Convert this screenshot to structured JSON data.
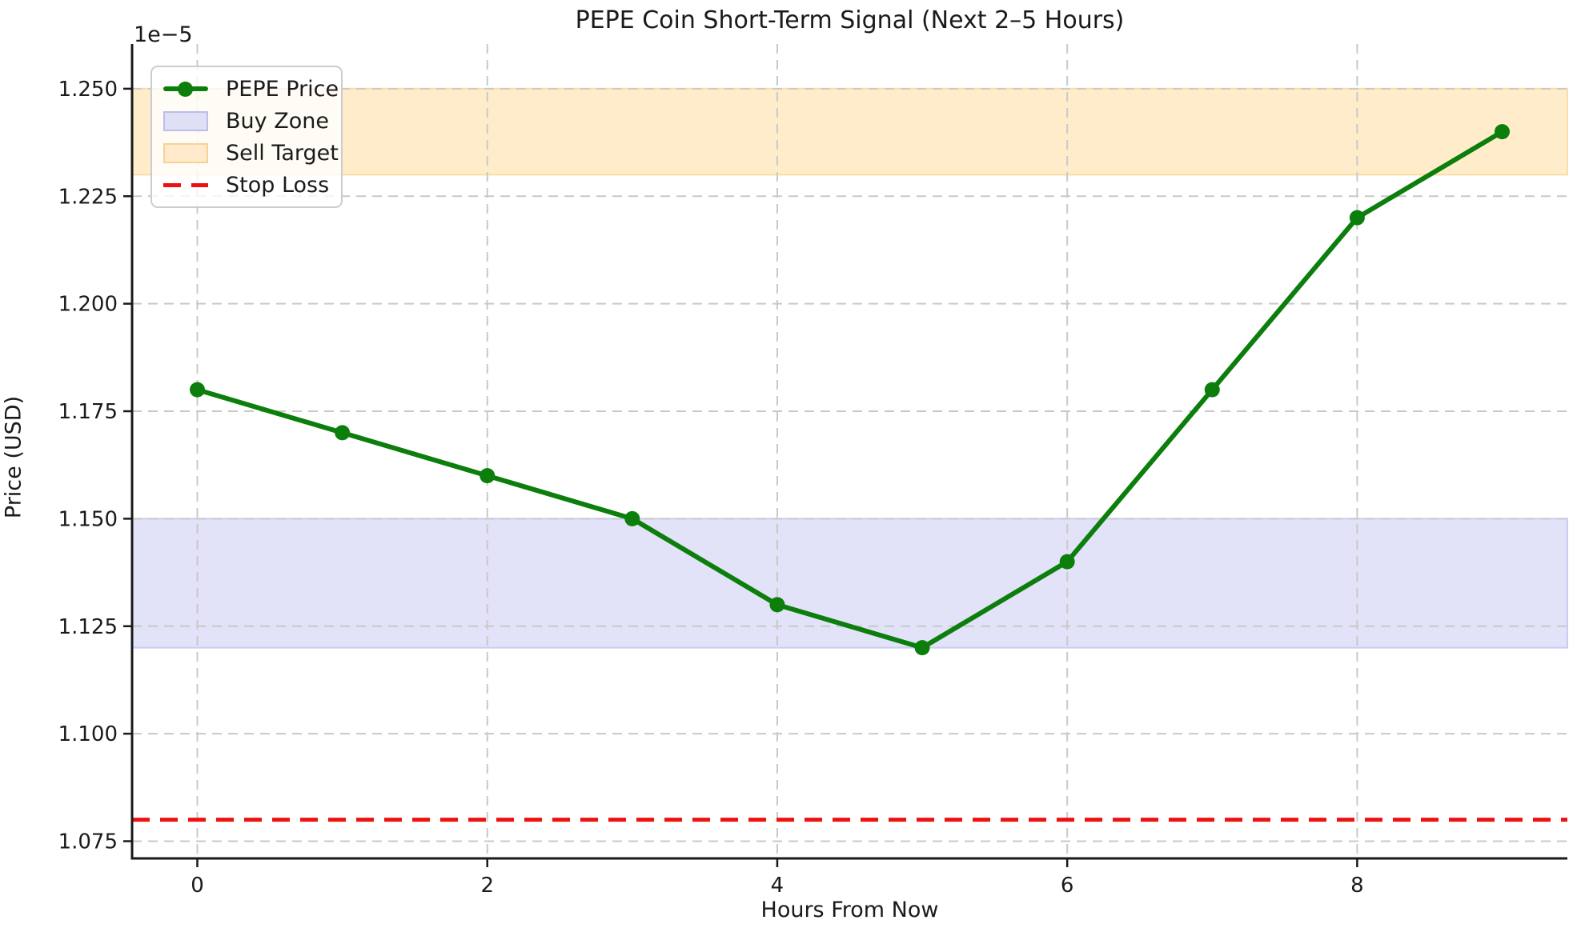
{
  "chart_data": {
    "type": "line",
    "title": "PEPE Coin Short-Term Signal (Next 2–5 Hours)",
    "xlabel": "Hours From Now",
    "ylabel": "Price (USD)",
    "y_offset_label": "1e−5",
    "x": [
      0,
      1,
      2,
      3,
      4,
      5,
      6,
      7,
      8,
      9
    ],
    "series": [
      {
        "name": "PEPE Price",
        "values": [
          1.18,
          1.17,
          1.16,
          1.15,
          1.13,
          1.12,
          1.14,
          1.18,
          1.22,
          1.24
        ],
        "color": "#0b7e0b",
        "marker": "circle",
        "line_width": 6,
        "marker_radius": 9.5
      }
    ],
    "bands": [
      {
        "name": "Buy Zone",
        "from": 1.12,
        "to": 1.15,
        "fill": "#e2e2f8",
        "edge": "#c9cdf1"
      },
      {
        "name": "Sell Target",
        "from": 1.23,
        "to": 1.25,
        "fill": "#ffeccb",
        "edge": "#fbdda6"
      }
    ],
    "hlines": [
      {
        "name": "Stop Loss",
        "value": 1.08,
        "color": "#ee1111",
        "style": "dashed",
        "width": 5
      }
    ],
    "xticks": [
      {
        "v": 0,
        "label": "0"
      },
      {
        "v": 2,
        "label": "2"
      },
      {
        "v": 4,
        "label": "4"
      },
      {
        "v": 6,
        "label": "6"
      },
      {
        "v": 8,
        "label": "8"
      }
    ],
    "yticks": [
      {
        "v": 1.075,
        "label": "1.075"
      },
      {
        "v": 1.1,
        "label": "1.100"
      },
      {
        "v": 1.125,
        "label": "1.125"
      },
      {
        "v": 1.15,
        "label": "1.150"
      },
      {
        "v": 1.175,
        "label": "1.175"
      },
      {
        "v": 1.2,
        "label": "1.200"
      },
      {
        "v": 1.225,
        "label": "1.225"
      },
      {
        "v": 1.25,
        "label": "1.250"
      }
    ],
    "xlim": [
      -0.45,
      9.45
    ],
    "ylim": [
      1.071,
      1.2604
    ],
    "grid": true,
    "grid_color": "#c9c9c9",
    "spine_color": "#1a1a1a",
    "text_color": "#1a1a1a",
    "legend_position": "upper-left"
  },
  "legend": {
    "items": [
      {
        "label": "PEPE Price",
        "type": "line-marker",
        "color": "#0b7e0b"
      },
      {
        "label": "Buy Zone",
        "type": "patch",
        "fill": "#dfdff6",
        "edge": "#b9bfe9"
      },
      {
        "label": "Sell Target",
        "type": "patch",
        "fill": "#ffeacc",
        "edge": "#f6d295"
      },
      {
        "label": "Stop Loss",
        "type": "dashed-line",
        "color": "#ee1111"
      }
    ]
  }
}
